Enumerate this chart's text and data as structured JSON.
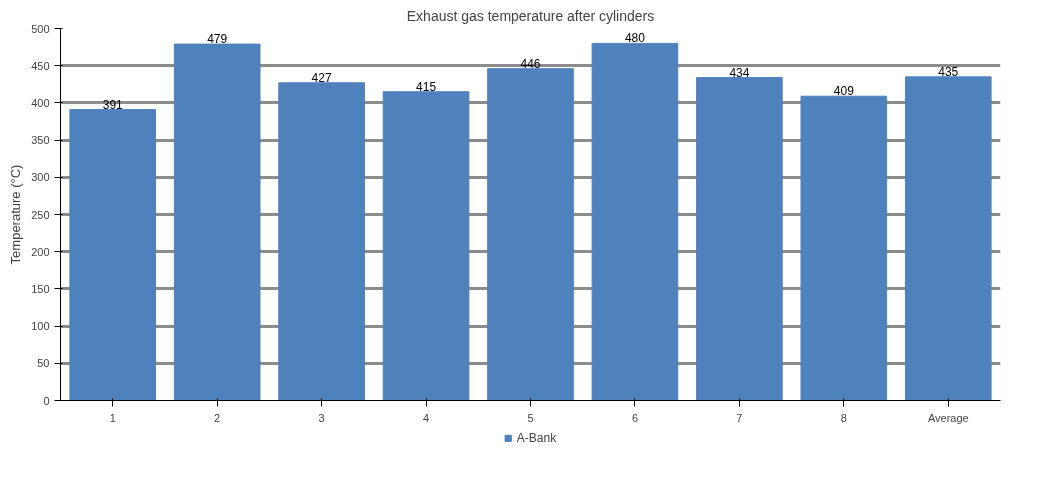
{
  "chart_data": {
    "type": "bar",
    "title": "Exhaust gas temperature after cylinders",
    "ylabel": "Temperature (°C)",
    "categories": [
      "1",
      "2",
      "3",
      "4",
      "5",
      "6",
      "7",
      "8",
      "Average"
    ],
    "series": [
      {
        "name": "A-Bank",
        "color": "#4f81bd",
        "values": [
          391,
          479,
          427,
          415,
          446,
          480,
          434,
          409,
          435
        ]
      }
    ],
    "ylim": [
      0,
      500
    ],
    "yticks": [
      0,
      50,
      100,
      150,
      200,
      250,
      300,
      350,
      400,
      450,
      500
    ],
    "grid": "y",
    "legend": "bottom",
    "data_labels": true
  }
}
